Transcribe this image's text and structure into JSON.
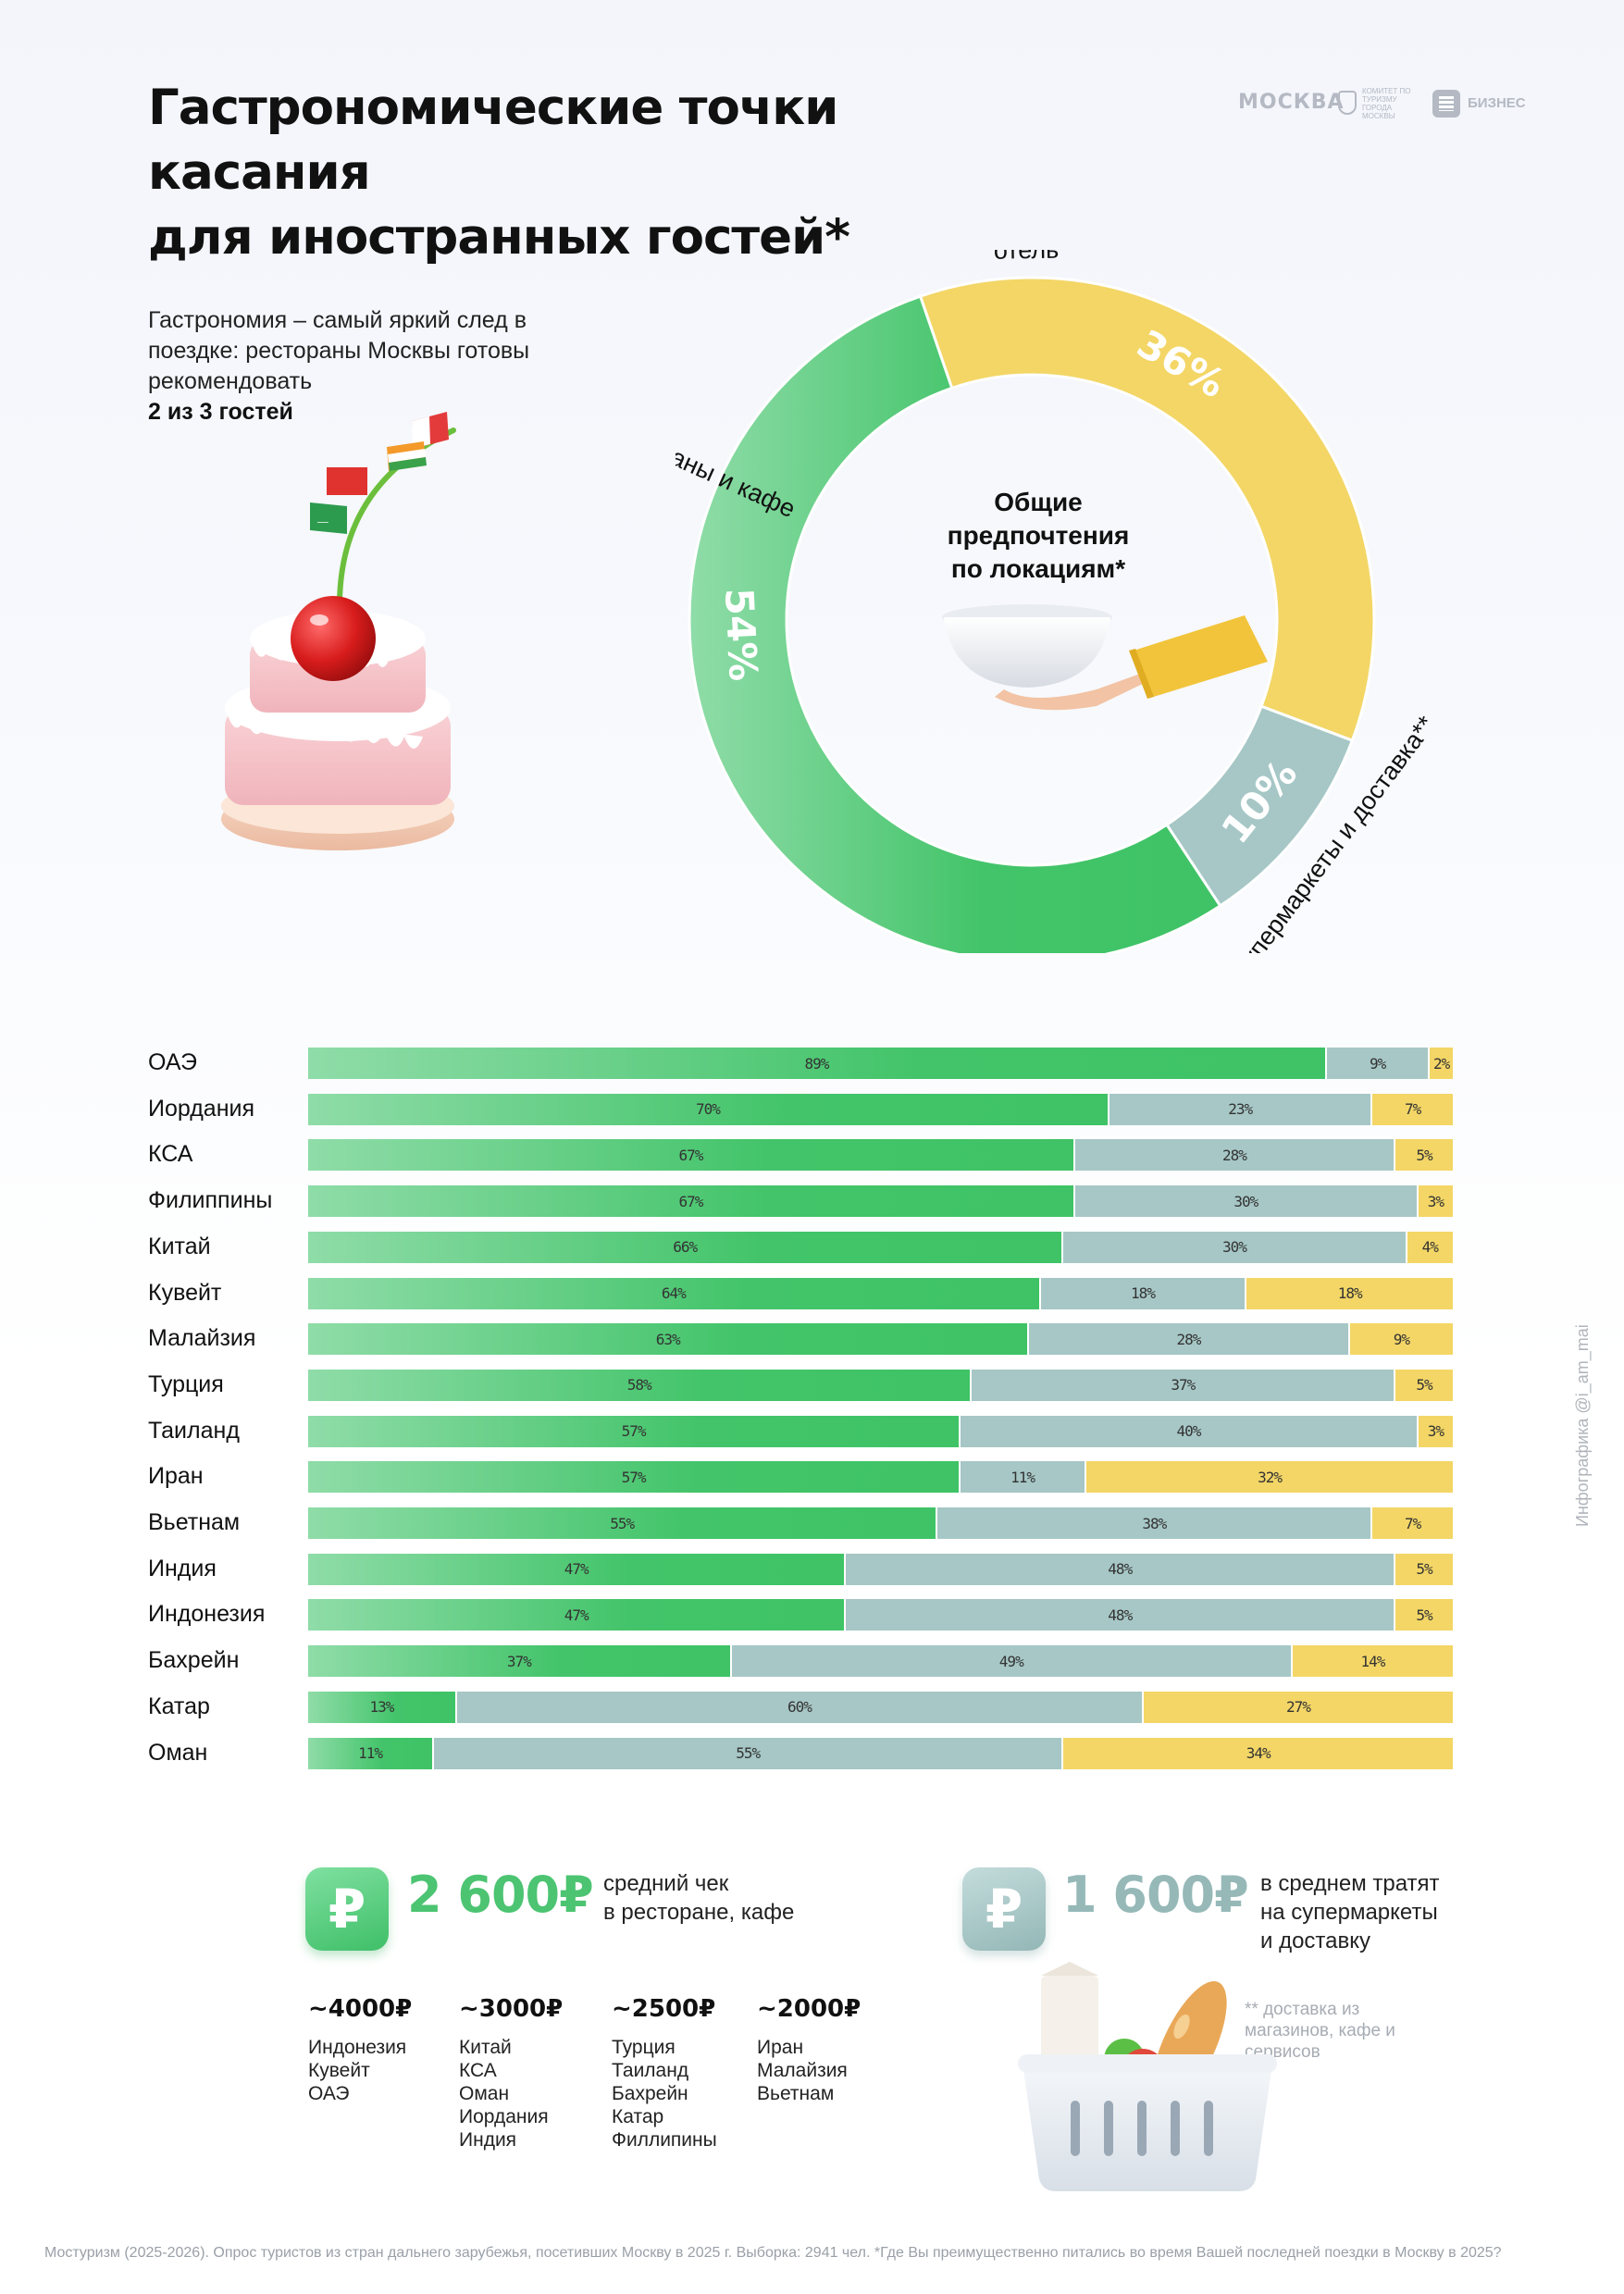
{
  "header": {
    "title_line1": "Гастрономические точки касания",
    "title_line2": "для иностранных гостей*",
    "logo_moskva": "МОСКВА",
    "logo_committee": "КОМИТЕТ ПО ТУРИЗМУ ГОРОДА МОСКВЫ",
    "logo_biz": "БИЗНЕС"
  },
  "intro": {
    "text": "Гастрономия – самый яркий след в поездке: рестораны Москвы готовы рекомендовать",
    "highlight": "2 из 3 гостей"
  },
  "chart_data": [
    {
      "type": "pie",
      "title": "Общие предпочтения по локациям*",
      "slices": [
        {
          "label": "рестораны и кафе",
          "value": 54,
          "display": "54%",
          "color": "#43c46a"
        },
        {
          "label": "супермаркеты и доставка**",
          "value": 10,
          "display": "10%",
          "color": "#a6c7c6"
        },
        {
          "label": "отель",
          "value": 36,
          "display": "36%",
          "color": "#f3d666"
        }
      ]
    },
    {
      "type": "bar",
      "stacked": true,
      "orientation": "horizontal",
      "categories": [
        "ОАЭ",
        "Иордания",
        "КСА",
        "Филиппины",
        "Китай",
        "Кувейт",
        "Малайзия",
        "Турция",
        "Таиланд",
        "Иран",
        "Вьетнам",
        "Индия",
        "Индонезия",
        "Бахрейн",
        "Катар",
        "Оман"
      ],
      "series": [
        {
          "key": "r",
          "color": "#43c46a",
          "values": [
            89,
            70,
            67,
            67,
            66,
            64,
            63,
            58,
            57,
            57,
            55,
            47,
            47,
            37,
            13,
            11
          ]
        },
        {
          "key": "s",
          "color": "#a6c7c6",
          "values": [
            9,
            23,
            28,
            30,
            30,
            18,
            28,
            37,
            40,
            11,
            38,
            48,
            48,
            49,
            60,
            55
          ]
        },
        {
          "key": "h",
          "color": "#f3d666",
          "values": [
            2,
            7,
            5,
            3,
            4,
            18,
            9,
            5,
            3,
            32,
            7,
            5,
            5,
            14,
            27,
            34
          ]
        }
      ]
    }
  ],
  "stats": {
    "restaurant_value": "2 600₽",
    "restaurant_desc1": "средний чек",
    "restaurant_desc2": "в ресторане, кафе",
    "supermarket_value": "1 600₽",
    "supermarket_desc1": "в среднем тратят",
    "supermarket_desc2": "на супермаркеты",
    "supermarket_desc3": "и доставку",
    "rub_symbol": "₽"
  },
  "tiers": [
    {
      "amount": "~4000₽",
      "countries": [
        "Индонезия",
        "Кувейт",
        "ОАЭ"
      ]
    },
    {
      "amount": "~3000₽",
      "countries": [
        "Китай",
        "КСА",
        "Оман",
        "Иордания",
        "Индия"
      ]
    },
    {
      "amount": "~2500₽",
      "countries": [
        "Турция",
        "Таиланд",
        "Бахрейн",
        "Катар",
        "Филлипины"
      ]
    },
    {
      "amount": "~2000₽",
      "countries": [
        "Иран",
        "Малайзия",
        "Вьетнам"
      ]
    }
  ],
  "footnote_delivery": "** доставка из магазинов, кафе и сервисов",
  "source": "Мостуризм (2025-2026). Опрос туристов из стран дальнего зарубежья, посетивших Москву в 2025 г. Выборка: 2941 чел.    *Где Вы преимущественно питались во время Вашей последней поездки в Москву в 2025?",
  "credit": "Инфографика @i_am_mai"
}
